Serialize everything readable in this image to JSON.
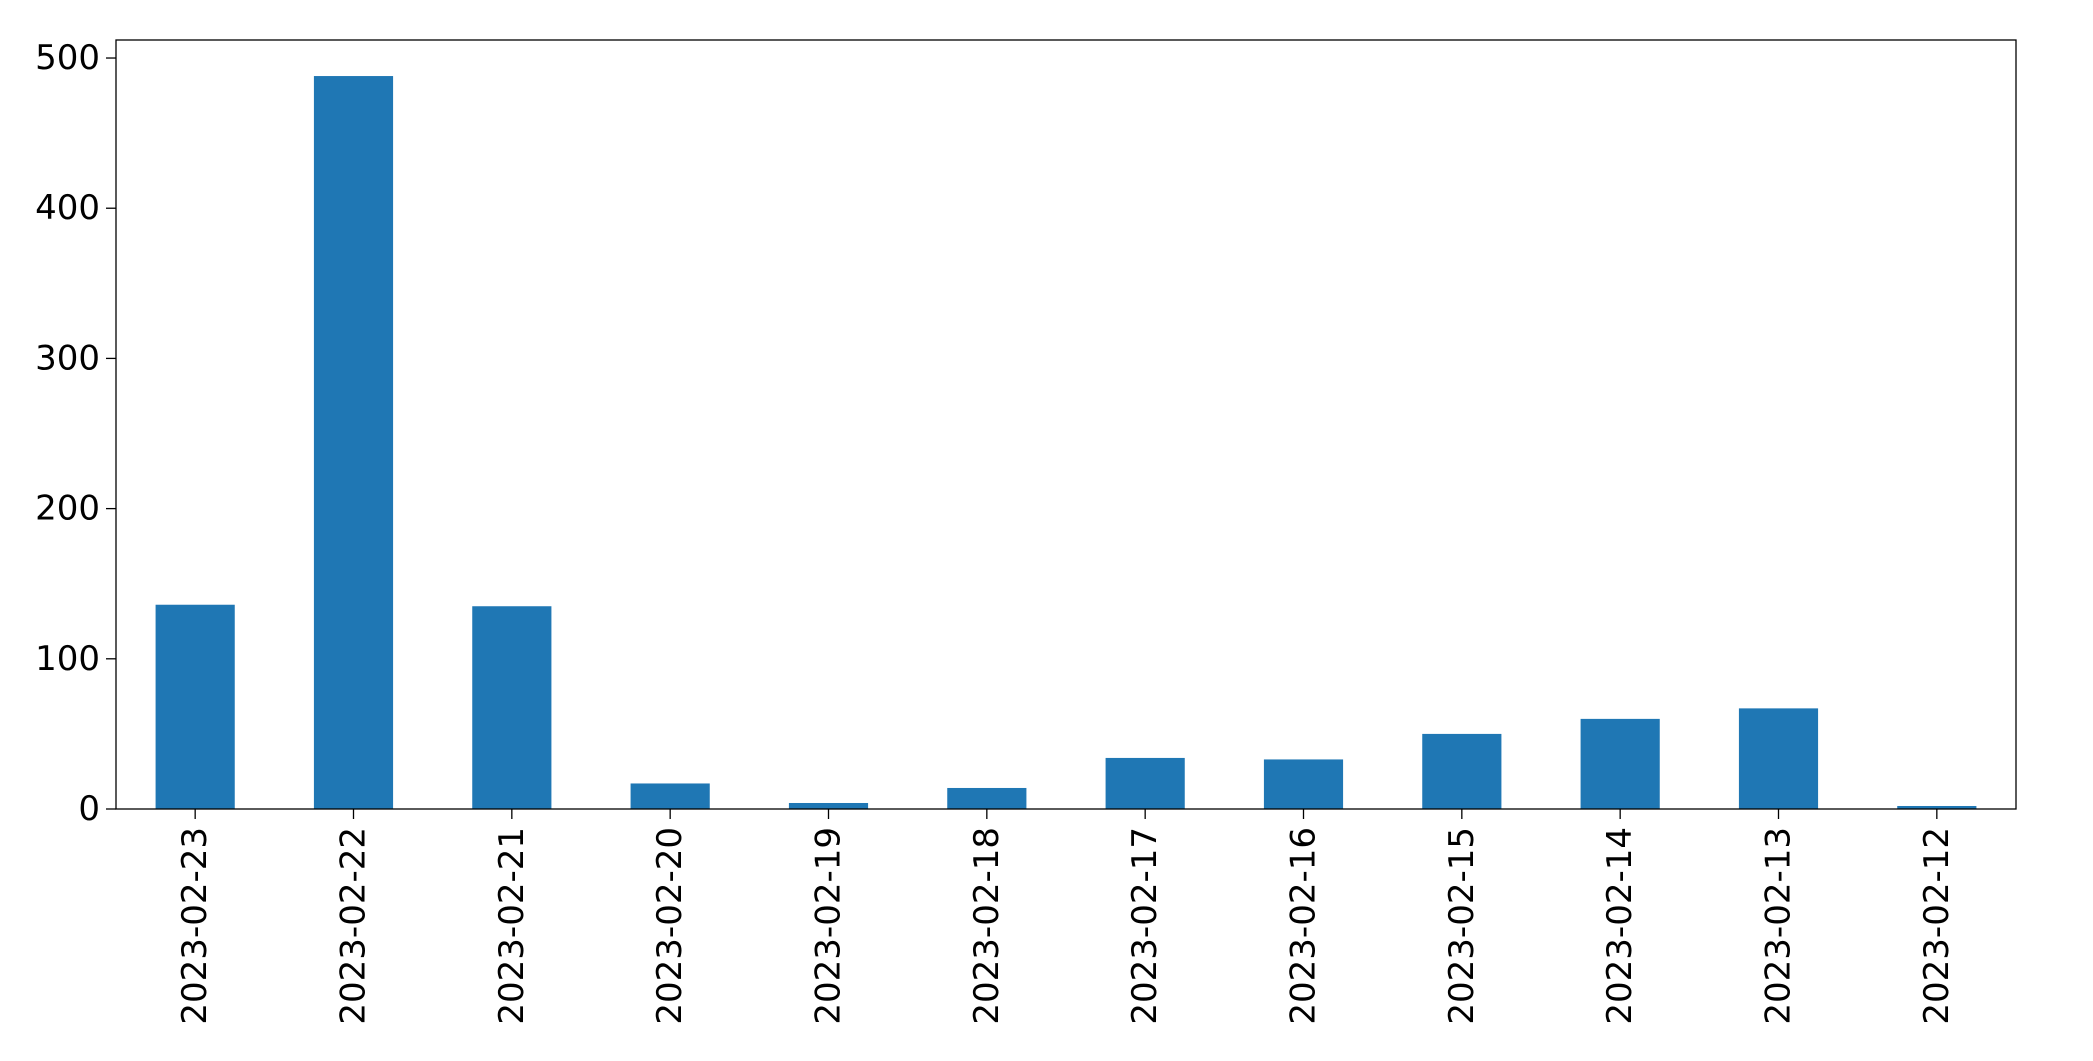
{
  "chart_data": {
    "type": "bar",
    "categories": [
      "2023-02-23",
      "2023-02-22",
      "2023-02-21",
      "2023-02-20",
      "2023-02-19",
      "2023-02-18",
      "2023-02-17",
      "2023-02-16",
      "2023-02-15",
      "2023-02-14",
      "2023-02-13",
      "2023-02-12"
    ],
    "values": [
      136,
      488,
      135,
      17,
      4,
      14,
      34,
      33,
      50,
      60,
      67,
      2
    ],
    "color": "#1f77b4",
    "ylim": [
      0,
      512
    ],
    "yticks": [
      0,
      100,
      200,
      300,
      400,
      500
    ],
    "grid": false
  }
}
